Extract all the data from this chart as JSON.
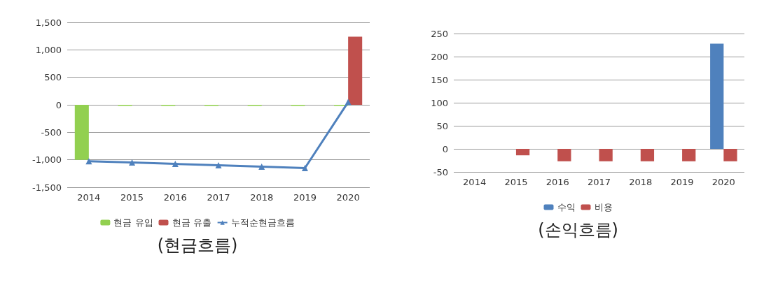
{
  "chart_data": [
    {
      "type": "bar",
      "title": "(현금흐름)",
      "categories": [
        "2014",
        "2015",
        "2016",
        "2017",
        "2018",
        "2019",
        "2020"
      ],
      "ylim": [
        -1500,
        1500
      ],
      "yticks": [
        {
          "value": -1500,
          "label": "-1,500"
        },
        {
          "value": -1000,
          "label": "-1,000"
        },
        -500,
        0,
        500,
        {
          "value": 1000,
          "label": "1,000"
        },
        {
          "value": 1500,
          "label": "1,500"
        }
      ],
      "grid": "y",
      "legend": "bottom",
      "series": [
        {
          "name": "현금 유입",
          "color": "#92d050",
          "values": [
            -1000,
            -20,
            -20,
            -20,
            -20,
            -20,
            -20
          ]
        },
        {
          "name": "현금 유출",
          "color": "#c0504d",
          "values": [
            0,
            0,
            0,
            0,
            0,
            0,
            1240
          ]
        },
        {
          "name": "누적순현금흐름",
          "type": "line",
          "color": "#4f81bd",
          "marker": "triangle",
          "values": [
            -1025,
            -1050,
            -1075,
            -1100,
            -1125,
            -1150,
            50
          ]
        }
      ]
    },
    {
      "type": "bar",
      "title": "(손익흐름)",
      "categories": [
        "2014",
        "2015",
        "2016",
        "2017",
        "2018",
        "2019",
        "2020"
      ],
      "ylim": [
        -50,
        250
      ],
      "yticks": [
        -50,
        0,
        50,
        100,
        150,
        200,
        250
      ],
      "grid": "y",
      "legend": "bottom",
      "series": [
        {
          "name": "수익",
          "color": "#4f81bd",
          "values": [
            null,
            null,
            null,
            null,
            null,
            null,
            228
          ]
        },
        {
          "name": "비용",
          "color": "#c0504d",
          "values": [
            null,
            -14,
            -27,
            -27,
            -27,
            -27,
            -27
          ]
        }
      ]
    }
  ]
}
